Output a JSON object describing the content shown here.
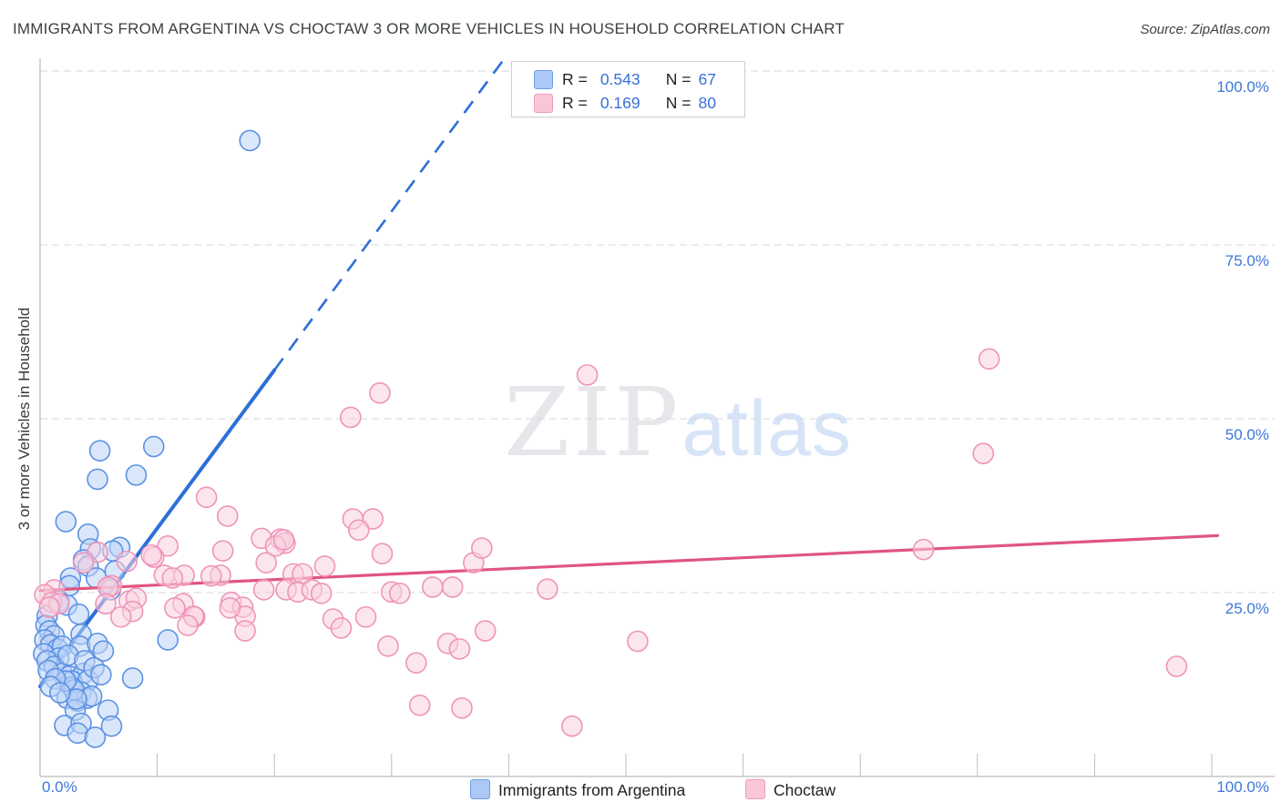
{
  "header": {
    "title": "IMMIGRANTS FROM ARGENTINA VS CHOCTAW 3 OR MORE VEHICLES IN HOUSEHOLD CORRELATION CHART",
    "source": "Source: ZipAtlas.com"
  },
  "watermark": {
    "zip": "ZIP",
    "atlas": "atlas"
  },
  "legend": {
    "rows": [
      {
        "series": "Immigrants from Argentina",
        "r_label": "R =",
        "r_value": "0.543",
        "n_label": "N =",
        "n_value": "67"
      },
      {
        "series": "Choctaw",
        "r_label": "R =",
        "r_value": "0.169",
        "n_label": "N =",
        "n_value": "80"
      }
    ]
  },
  "bottom_legend": {
    "items": [
      {
        "label": "Immigrants from Argentina",
        "color": "#abc9f4",
        "border": "#6f9ce8"
      },
      {
        "label": "Choctaw",
        "color": "#f9c6d8",
        "border": "#ef9ab9"
      }
    ]
  },
  "axes": {
    "y_title": "3 or more Vehicles in Household",
    "y_labels": [
      "100.0%",
      "75.0%",
      "50.0%",
      "25.0%"
    ],
    "x_left": "0.0%",
    "x_right": "100.0%"
  },
  "chart_data": {
    "type": "scatter",
    "title": "Immigrants from Argentina vs Choctaw 3 or more Vehicles in Household",
    "xlabel": "Immigrants from Argentina (%)",
    "ylabel": "3 or more Vehicles in Household (%)",
    "x_range_pct": [
      0,
      100
    ],
    "y_range_pct": [
      0,
      100
    ],
    "grid": "horizontal-dashed",
    "gridlines_pct": [
      100,
      75,
      50,
      25
    ],
    "x_ticks_pct": [
      10,
      20,
      30,
      40,
      50,
      60,
      70,
      80,
      90,
      100
    ],
    "legend_position": "top-center and bottom-center",
    "series": [
      {
        "name": "Immigrants from Argentina",
        "R": 0.543,
        "N": 67,
        "marker_fill": "#bcd4f6",
        "marker_stroke": "#5b91e5",
        "trend_color": "#2d6fd7",
        "trend_solid_pct": [
          [
            0,
            11.5
          ],
          [
            20,
            57
          ]
        ],
        "trend_dashed_pct": [
          [
            20,
            57
          ],
          [
            39.5,
            101.5
          ]
        ],
        "points_pct": [
          [
            17.9,
            90
          ],
          [
            5.1,
            45.4
          ],
          [
            9.7,
            46
          ],
          [
            4.9,
            41.3
          ],
          [
            8.2,
            41.9
          ],
          [
            2.2,
            35.2
          ],
          [
            4.1,
            33.4
          ],
          [
            6.8,
            31.5
          ],
          [
            4.3,
            31.3
          ],
          [
            6.2,
            31
          ],
          [
            3.7,
            29.7
          ],
          [
            4.1,
            28.8
          ],
          [
            4.8,
            27.1
          ],
          [
            6.4,
            28.1
          ],
          [
            2.6,
            27.1
          ],
          [
            2.5,
            26
          ],
          [
            6,
            25.4
          ],
          [
            1.6,
            23.8
          ],
          [
            2.3,
            23.2
          ],
          [
            0.6,
            21.6
          ],
          [
            3.3,
            21.9
          ],
          [
            0.5,
            20.3
          ],
          [
            0.8,
            19.5
          ],
          [
            1.2,
            18.8
          ],
          [
            0.4,
            18.2
          ],
          [
            0.9,
            17.5
          ],
          [
            1.5,
            16.9
          ],
          [
            0.3,
            16.2
          ],
          [
            1.9,
            17.3
          ],
          [
            3.5,
            19
          ],
          [
            1.6,
            15.6
          ],
          [
            0.6,
            15.2
          ],
          [
            3.4,
            17.3
          ],
          [
            4.9,
            17.7
          ],
          [
            5.4,
            16.6
          ],
          [
            10.9,
            18.2
          ],
          [
            1.2,
            14.4
          ],
          [
            1.9,
            13.4
          ],
          [
            2.5,
            13
          ],
          [
            3.7,
            13.4
          ],
          [
            2.7,
            12.3
          ],
          [
            4.1,
            12.4
          ],
          [
            7.9,
            12.7
          ],
          [
            2.7,
            11.4
          ],
          [
            3.5,
            10.7
          ],
          [
            2.3,
            9.8
          ],
          [
            3.2,
            9.4
          ],
          [
            4,
            9.8
          ],
          [
            3,
            8.1
          ],
          [
            5.8,
            8.1
          ],
          [
            2.1,
            5.9
          ],
          [
            3.5,
            6.2
          ],
          [
            3.2,
            4.8
          ],
          [
            4.7,
            4.2
          ],
          [
            6.1,
            5.8
          ],
          [
            2.9,
            11
          ],
          [
            4.4,
            10.1
          ],
          [
            3.1,
            9.7
          ],
          [
            2.2,
            12.3
          ],
          [
            0.7,
            13.8
          ],
          [
            1.3,
            12.6
          ],
          [
            2.4,
            16
          ],
          [
            3.8,
            15.2
          ],
          [
            4.6,
            14.2
          ],
          [
            5.2,
            13.2
          ],
          [
            0.9,
            11.5
          ],
          [
            1.7,
            10.6
          ]
        ]
      },
      {
        "name": "Choctaw",
        "R": 0.169,
        "N": 80,
        "marker_fill": "#fad2e0",
        "marker_stroke": "#ee94b8",
        "trend_color": "#e0557f",
        "trend_solid_pct": [
          [
            0,
            25.3
          ],
          [
            100.5,
            33.2
          ]
        ],
        "trend_dashed_pct": [],
        "points_pct": [
          [
            46.7,
            56.3
          ],
          [
            81,
            58.6
          ],
          [
            80.5,
            45
          ],
          [
            29,
            53.7
          ],
          [
            26.5,
            50.2
          ],
          [
            14.2,
            38.7
          ],
          [
            16,
            36
          ],
          [
            18.9,
            32.8
          ],
          [
            19.3,
            29.3
          ],
          [
            20.5,
            32.7
          ],
          [
            20.9,
            32.1
          ],
          [
            10.9,
            31.7
          ],
          [
            15.6,
            31
          ],
          [
            20.1,
            31.7
          ],
          [
            9.7,
            30.1
          ],
          [
            10.6,
            27.5
          ],
          [
            12.3,
            27.5
          ],
          [
            11.3,
            27.1
          ],
          [
            15.4,
            27.5
          ],
          [
            14.6,
            27.4
          ],
          [
            4.9,
            30.8
          ],
          [
            3.7,
            29.3
          ],
          [
            7.4,
            29.5
          ],
          [
            9.5,
            30.4
          ],
          [
            6.1,
            26
          ],
          [
            5.8,
            25.8
          ],
          [
            1.2,
            25.4
          ],
          [
            0.4,
            24.7
          ],
          [
            1,
            23.6
          ],
          [
            1.6,
            23.4
          ],
          [
            0.8,
            22.9
          ],
          [
            5.6,
            23.4
          ],
          [
            7.6,
            23.8
          ],
          [
            8.2,
            24.2
          ],
          [
            7.9,
            22.3
          ],
          [
            6.9,
            21.5
          ],
          [
            12.2,
            23.4
          ],
          [
            11.5,
            22.8
          ],
          [
            13.2,
            21.5
          ],
          [
            13.1,
            21.6
          ],
          [
            12.6,
            20.3
          ],
          [
            16.3,
            23.6
          ],
          [
            17.3,
            22.9
          ],
          [
            17.5,
            21.6
          ],
          [
            16.2,
            22.8
          ],
          [
            19.1,
            25.4
          ],
          [
            17.5,
            19.5
          ],
          [
            25,
            21.2
          ],
          [
            25.7,
            19.9
          ],
          [
            27.8,
            21.5
          ],
          [
            24.3,
            28.8
          ],
          [
            21.6,
            27.7
          ],
          [
            22.4,
            27.7
          ],
          [
            21,
            25.4
          ],
          [
            22,
            25.1
          ],
          [
            23.2,
            25.4
          ],
          [
            24,
            24.9
          ],
          [
            26.7,
            35.6
          ],
          [
            28.4,
            35.6
          ],
          [
            27.2,
            34
          ],
          [
            20.8,
            32.6
          ],
          [
            29.2,
            30.6
          ],
          [
            30,
            25.1
          ],
          [
            30.7,
            24.9
          ],
          [
            33.5,
            25.8
          ],
          [
            35.2,
            25.8
          ],
          [
            43.3,
            25.5
          ],
          [
            37,
            29.3
          ],
          [
            37.7,
            31.4
          ],
          [
            29.7,
            17.3
          ],
          [
            34.8,
            17.7
          ],
          [
            35.8,
            16.9
          ],
          [
            38,
            19.5
          ],
          [
            32.1,
            14.9
          ],
          [
            32.4,
            8.8
          ],
          [
            36,
            8.4
          ],
          [
            45.4,
            5.8
          ],
          [
            51,
            18
          ],
          [
            75.4,
            31.2
          ],
          [
            97,
            14.4
          ]
        ]
      }
    ],
    "style": {
      "gridline_color": "#d7d7d7",
      "axis_color": "#ababab",
      "tick_color": "#bdbdbd",
      "axis_label_color": "#3c78d8",
      "marker_radius": 11
    }
  }
}
